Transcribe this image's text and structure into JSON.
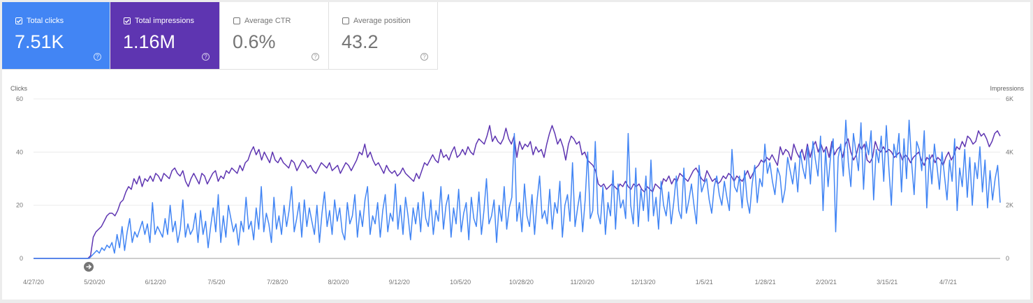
{
  "cards": [
    {
      "label": "Total clicks",
      "value": "7.51K",
      "checked": true,
      "color": "#4285f4"
    },
    {
      "label": "Total impressions",
      "value": "1.16M",
      "checked": true,
      "color": "#5e35b1"
    },
    {
      "label": "Average CTR",
      "value": "0.6%",
      "checked": false,
      "color": "#ffffff"
    },
    {
      "label": "Average position",
      "value": "43.2",
      "checked": false,
      "color": "#ffffff"
    }
  ],
  "help_glyph": "?",
  "annotation_icon": "arrow-right-icon",
  "chart_data": {
    "type": "line",
    "x_tick_labels": [
      "4/27/20",
      "5/20/20",
      "6/12/20",
      "7/5/20",
      "7/28/20",
      "8/20/20",
      "9/12/20",
      "10/5/20",
      "10/28/20",
      "11/20/20",
      "12/13/20",
      "1/5/21",
      "1/28/21",
      "2/20/21",
      "3/15/21",
      "4/7/21"
    ],
    "x_start": "4/27/20",
    "x_end": "4/26/21",
    "left_axis": {
      "label": "Clicks",
      "ticks": [
        "0",
        "20",
        "40",
        "60"
      ],
      "range": [
        0,
        60
      ]
    },
    "right_axis": {
      "label": "Impressions",
      "ticks": [
        "0",
        "2K",
        "4K",
        "6K"
      ],
      "range": [
        0,
        6000
      ]
    },
    "grid": true,
    "series": [
      {
        "metric": "Impressions",
        "axis": "right",
        "color": "#5e35b1",
        "values": [
          0,
          0,
          0,
          0,
          0,
          0,
          0,
          0,
          0,
          0,
          0,
          0,
          0,
          0,
          0,
          0,
          0,
          0,
          0,
          0,
          0,
          100,
          800,
          1000,
          1100,
          1200,
          1400,
          1600,
          1700,
          1700,
          1600,
          1800,
          2100,
          2200,
          2500,
          2700,
          2600,
          3000,
          2800,
          3100,
          2700,
          3000,
          2900,
          3100,
          2900,
          3200,
          3100,
          2900,
          3200,
          3100,
          3000,
          3300,
          3400,
          3200,
          3100,
          3300,
          2900,
          2700,
          3000,
          3200,
          3000,
          2800,
          3200,
          3100,
          2800,
          3000,
          3200,
          3300,
          2900,
          3100,
          3000,
          3300,
          3200,
          3400,
          3300,
          3200,
          3500,
          3300,
          3600,
          3700,
          4000,
          4200,
          3900,
          4100,
          3700,
          4000,
          3800,
          3600,
          4000,
          3700,
          3600,
          3800,
          3600,
          3500,
          3400,
          3700,
          3600,
          3300,
          3500,
          3700,
          3600,
          3400,
          3500,
          3300,
          3200,
          3400,
          3600,
          3500,
          3400,
          3600,
          3300,
          3400,
          3500,
          3200,
          3400,
          3600,
          3500,
          3300,
          3500,
          3700,
          4000,
          3900,
          4300,
          3800,
          4000,
          3700,
          3500,
          3600,
          3400,
          3200,
          3500,
          3300,
          3200,
          3300,
          3100,
          3200,
          3400,
          3200,
          3100,
          3000,
          2900,
          3200,
          3000,
          3300,
          3600,
          3500,
          3700,
          3900,
          3700,
          3600,
          4100,
          3800,
          3900,
          3700,
          4000,
          4200,
          3800,
          3900,
          4100,
          3900,
          4200,
          4000,
          3900,
          4300,
          4500,
          4400,
          4300,
          4600,
          5000,
          4400,
          4600,
          4400,
          4300,
          4500,
          4900,
          4500,
          4300,
          4600,
          3800,
          4400,
          4100,
          4300,
          4200,
          4400,
          3900,
          4200,
          4000,
          4100,
          3800,
          4300,
          4700,
          5000,
          4700,
          4300,
          4500,
          4200,
          3700,
          4300,
          4600,
          4500,
          4300,
          4400,
          3900,
          4000,
          3700,
          3600,
          3500,
          3300,
          2800,
          2700,
          2800,
          2600,
          2700,
          2800,
          2700,
          2600,
          2800,
          2700,
          2900,
          2700,
          2600,
          2800,
          2700,
          2800,
          2600,
          2500,
          2700,
          2600,
          2500,
          2800,
          2700,
          2600,
          3000,
          2900,
          3100,
          2800,
          3000,
          2900,
          3200,
          3100,
          3000,
          2900,
          3100,
          3300,
          3400,
          3200,
          3000,
          2900,
          3300,
          3100,
          2900,
          3000,
          2800,
          2900,
          3100,
          3000,
          3200,
          3100,
          2900,
          3100,
          3000,
          2900,
          3100,
          3300,
          3000,
          3200,
          3400,
          3500,
          3700,
          3600,
          3800,
          3700,
          3900,
          3700,
          3500,
          4200,
          3900,
          4100,
          4000,
          3700,
          4300,
          4000,
          3800,
          4100,
          3700,
          4300,
          3800,
          4200,
          4400,
          4000,
          4300,
          4000,
          4200,
          3800,
          4400,
          3900,
          4100,
          4200,
          3800,
          4300,
          4500,
          4000,
          3700,
          3900,
          4300,
          4100,
          4300,
          3700,
          3600,
          3800,
          4400,
          4100,
          4000,
          4200,
          4000,
          4100,
          4000,
          3800,
          3900,
          4000,
          3700,
          3900,
          3800,
          3600,
          3800,
          3900,
          4000,
          3700,
          3500,
          3800,
          3700,
          3900,
          3600,
          3800,
          3700,
          3500,
          3800,
          4000,
          3700,
          3900,
          4200,
          4100,
          4400,
          4200,
          4600,
          4500,
          4300,
          4400,
          4800,
          4600,
          4700,
          4500,
          4200,
          4400,
          4700,
          4800,
          4600
        ]
      },
      {
        "metric": "Clicks",
        "axis": "left",
        "color": "#4285f4",
        "values": [
          0,
          0,
          0,
          0,
          0,
          0,
          0,
          0,
          0,
          0,
          0,
          0,
          0,
          0,
          0,
          0,
          0,
          0,
          0,
          0,
          0,
          0,
          0,
          1,
          2,
          3,
          2,
          4,
          3,
          5,
          4,
          6,
          2,
          9,
          4,
          12,
          3,
          10,
          15,
          6,
          10,
          8,
          11,
          14,
          9,
          13,
          6,
          21,
          9,
          12,
          10,
          8,
          15,
          9,
          20,
          10,
          14,
          6,
          11,
          22,
          8,
          13,
          9,
          11,
          17,
          6,
          18,
          9,
          14,
          4,
          12,
          19,
          10,
          24,
          6,
          16,
          8,
          20,
          15,
          10,
          13,
          5,
          14,
          10,
          23,
          11,
          14,
          7,
          19,
          11,
          27,
          10,
          17,
          13,
          6,
          23,
          11,
          16,
          9,
          20,
          12,
          18,
          27,
          10,
          15,
          21,
          8,
          22,
          12,
          19,
          14,
          9,
          20,
          6,
          17,
          25,
          12,
          18,
          9,
          22,
          14,
          19,
          10,
          7,
          21,
          13,
          16,
          24,
          8,
          18,
          12,
          22,
          27,
          9,
          16,
          13,
          21,
          8,
          18,
          24,
          10,
          17,
          14,
          28,
          11,
          20,
          9,
          23,
          16,
          7,
          19,
          13,
          21,
          10,
          25,
          15,
          12,
          22,
          9,
          18,
          14,
          27,
          11,
          20,
          24,
          8,
          19,
          13,
          26,
          10,
          17,
          21,
          7,
          23,
          15,
          12,
          25,
          9,
          18,
          30,
          13,
          16,
          22,
          6,
          20,
          14,
          27,
          11,
          19,
          23,
          47,
          14,
          21,
          10,
          28,
          16,
          12,
          24,
          9,
          22,
          31,
          15,
          18,
          13,
          26,
          11,
          21,
          17,
          29,
          8,
          20,
          24,
          14,
          36,
          12,
          19,
          25,
          10,
          22,
          40,
          15,
          18,
          44,
          17,
          13,
          27,
          9,
          21,
          16,
          33,
          11,
          28,
          19,
          22,
          15,
          47,
          20,
          13,
          34,
          12,
          26,
          18,
          31,
          14,
          37,
          16,
          23,
          11,
          29,
          20,
          16,
          25,
          13,
          21,
          31,
          18,
          15,
          34,
          17,
          22,
          28,
          20,
          13,
          35,
          25,
          28,
          30,
          22,
          17,
          27,
          31,
          24,
          20,
          29,
          23,
          18,
          41,
          27,
          25,
          31,
          19,
          33,
          22,
          17,
          28,
          35,
          21,
          30,
          27,
          43,
          32,
          36,
          29,
          24,
          34,
          31,
          21,
          26,
          38,
          33,
          28,
          36,
          25,
          40,
          34,
          30,
          42,
          28,
          44,
          37,
          31,
          46,
          18,
          41,
          27,
          39,
          45,
          10,
          38,
          43,
          31,
          52,
          36,
          27,
          47,
          40,
          33,
          51,
          26,
          44,
          39,
          48,
          22,
          41,
          36,
          46,
          29,
          50,
          34,
          20,
          43,
          38,
          47,
          25,
          45,
          30,
          52,
          36,
          24,
          44,
          41,
          33,
          48,
          19,
          39,
          28,
          43,
          35,
          26,
          40,
          31,
          22,
          37,
          29,
          45,
          18,
          34,
          27,
          41,
          23,
          38,
          20,
          36,
          30,
          42,
          25,
          37,
          19,
          33,
          22,
          30,
          35,
          21
        ]
      }
    ]
  }
}
